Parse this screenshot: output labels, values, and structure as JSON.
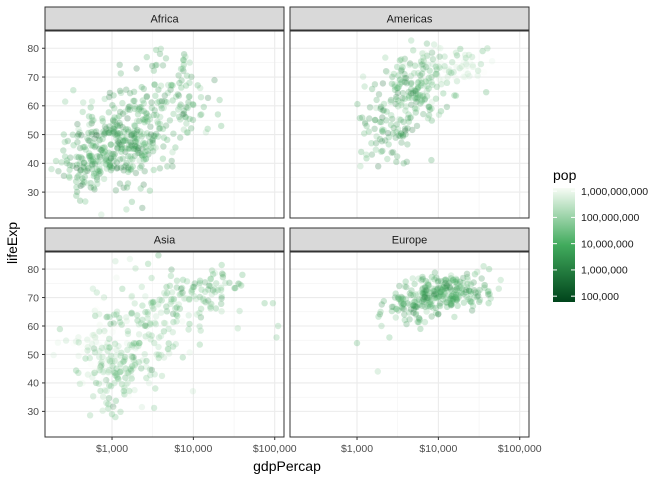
{
  "chart_data": {
    "type": "scatter",
    "faceted": true,
    "facet_layout": "2x2",
    "xlabel": "gdpPercap",
    "ylabel": "lifeExp",
    "x_scale": "log10",
    "xlim": [
      150,
      130000
    ],
    "ylim": [
      21,
      86
    ],
    "x_ticks": [
      1000,
      10000,
      100000
    ],
    "x_tick_labels": [
      "$1,000",
      "$10,000",
      "$100,000"
    ],
    "y_ticks": [
      30,
      40,
      50,
      60,
      70,
      80
    ],
    "y_tick_labels": [
      "30",
      "40",
      "50",
      "60",
      "70",
      "80"
    ],
    "grid": true,
    "point_alpha": 0.25,
    "color_encoding": {
      "variable": "pop",
      "title": "pop",
      "scale": "log10",
      "range": [
        60000,
        1318683096
      ],
      "breaks": [
        100000,
        1000000,
        10000000,
        100000000,
        1000000000
      ],
      "break_labels": [
        "100,000",
        "1,000,000",
        "10,000,000",
        "100,000,000",
        "1,000,000,000"
      ],
      "low_color": "#00441b",
      "mid_color": "#41ab5d",
      "high_color": "#f7fcf5",
      "legend_position": "right"
    },
    "facets": [
      {
        "name": "Africa",
        "clusters": [
          {
            "x": 1000,
            "y": 45,
            "sx": 0.28,
            "sy": 7,
            "n": 260,
            "p": 6.8
          },
          {
            "x": 2500,
            "y": 56,
            "sx": 0.25,
            "sy": 9,
            "n": 140,
            "p": 6.8
          },
          {
            "x": 7000,
            "y": 64,
            "sx": 0.18,
            "sy": 7,
            "n": 60,
            "p": 7.0
          },
          {
            "x": 450,
            "y": 40,
            "sx": 0.15,
            "sy": 5,
            "n": 50,
            "p": 6.5
          }
        ],
        "points": [
          [
            1500,
            24
          ],
          [
            15000,
            52
          ],
          [
            20000,
            57
          ],
          [
            22000,
            53
          ],
          [
            21000,
            62
          ],
          [
            9000,
            75
          ],
          [
            7500,
            76
          ],
          [
            280,
            41
          ],
          [
            300,
            35
          ]
        ]
      },
      {
        "name": "Americas",
        "clusters": [
          {
            "x": 5500,
            "y": 66,
            "sx": 0.22,
            "sy": 6,
            "n": 160,
            "p": 7.0
          },
          {
            "x": 2500,
            "y": 52,
            "sx": 0.18,
            "sy": 8,
            "n": 80,
            "p": 6.8
          },
          {
            "x": 16000,
            "y": 74,
            "sx": 0.18,
            "sy": 3,
            "n": 60,
            "p": 8.2
          }
        ],
        "points": [
          [
            1100,
            39
          ],
          [
            1300,
            43
          ],
          [
            1500,
            47
          ],
          [
            35000,
            79
          ],
          [
            40000,
            80
          ],
          [
            26000,
            77
          ]
        ]
      },
      {
        "name": "Asia",
        "clusters": [
          {
            "x": 1000,
            "y": 45,
            "sx": 0.22,
            "sy": 7,
            "n": 120,
            "p": 7.5
          },
          {
            "x": 2500,
            "y": 60,
            "sx": 0.28,
            "sy": 9,
            "n": 130,
            "p": 7.5
          },
          {
            "x": 12000,
            "y": 72,
            "sx": 0.28,
            "sy": 5,
            "n": 90,
            "p": 7.2
          },
          {
            "x": 600,
            "y": 55,
            "sx": 0.2,
            "sy": 6,
            "n": 40,
            "p": 8.8
          }
        ],
        "points": [
          [
            110000,
            60
          ],
          [
            105000,
            56
          ],
          [
            95000,
            68
          ],
          [
            75000,
            68
          ],
          [
            40000,
            78
          ],
          [
            1000,
            29
          ],
          [
            900,
            31
          ],
          [
            850,
            33
          ],
          [
            1100,
            28
          ]
        ]
      },
      {
        "name": "Europe",
        "clusters": [
          {
            "x": 14000,
            "y": 72,
            "sx": 0.25,
            "sy": 3,
            "n": 220,
            "p": 7.0
          },
          {
            "x": 5000,
            "y": 66,
            "sx": 0.2,
            "sy": 3,
            "n": 80,
            "p": 6.8
          }
        ],
        "points": [
          [
            1000,
            54
          ],
          [
            1800,
            44
          ],
          [
            2500,
            56
          ],
          [
            2000,
            60
          ],
          [
            3000,
            63
          ],
          [
            42000,
            80
          ],
          [
            36000,
            81
          ],
          [
            30000,
            79
          ]
        ]
      }
    ]
  }
}
